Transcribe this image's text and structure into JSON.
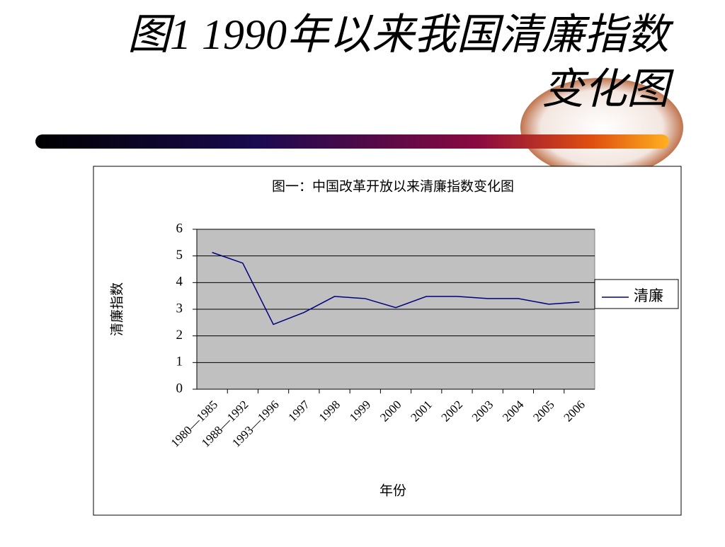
{
  "slide": {
    "title_lines": [
      "图1  1990年以来我国清廉指数",
      "变化图"
    ]
  },
  "chart_data": {
    "type": "line",
    "title": "图一：中国改革开放以来清廉指数变化图",
    "x_label": "年份",
    "y_label": "清廉指数",
    "categories": [
      "1980—1985",
      "1988—1992",
      "1993—1996",
      "1997",
      "1998",
      "1999",
      "2000",
      "2001",
      "2002",
      "2003",
      "2004",
      "2005",
      "2006"
    ],
    "series": [
      {
        "name": "清廉",
        "color": "#000080",
        "values": [
          5.13,
          4.73,
          2.43,
          2.88,
          3.48,
          3.4,
          3.06,
          3.48,
          3.48,
          3.4,
          3.4,
          3.19,
          3.27
        ]
      }
    ],
    "ylim": [
      0,
      6
    ],
    "yticks": [
      0,
      1,
      2,
      3,
      4,
      5,
      6
    ],
    "grid": true,
    "plot_background": "#c0c0c0",
    "legend": "right"
  }
}
